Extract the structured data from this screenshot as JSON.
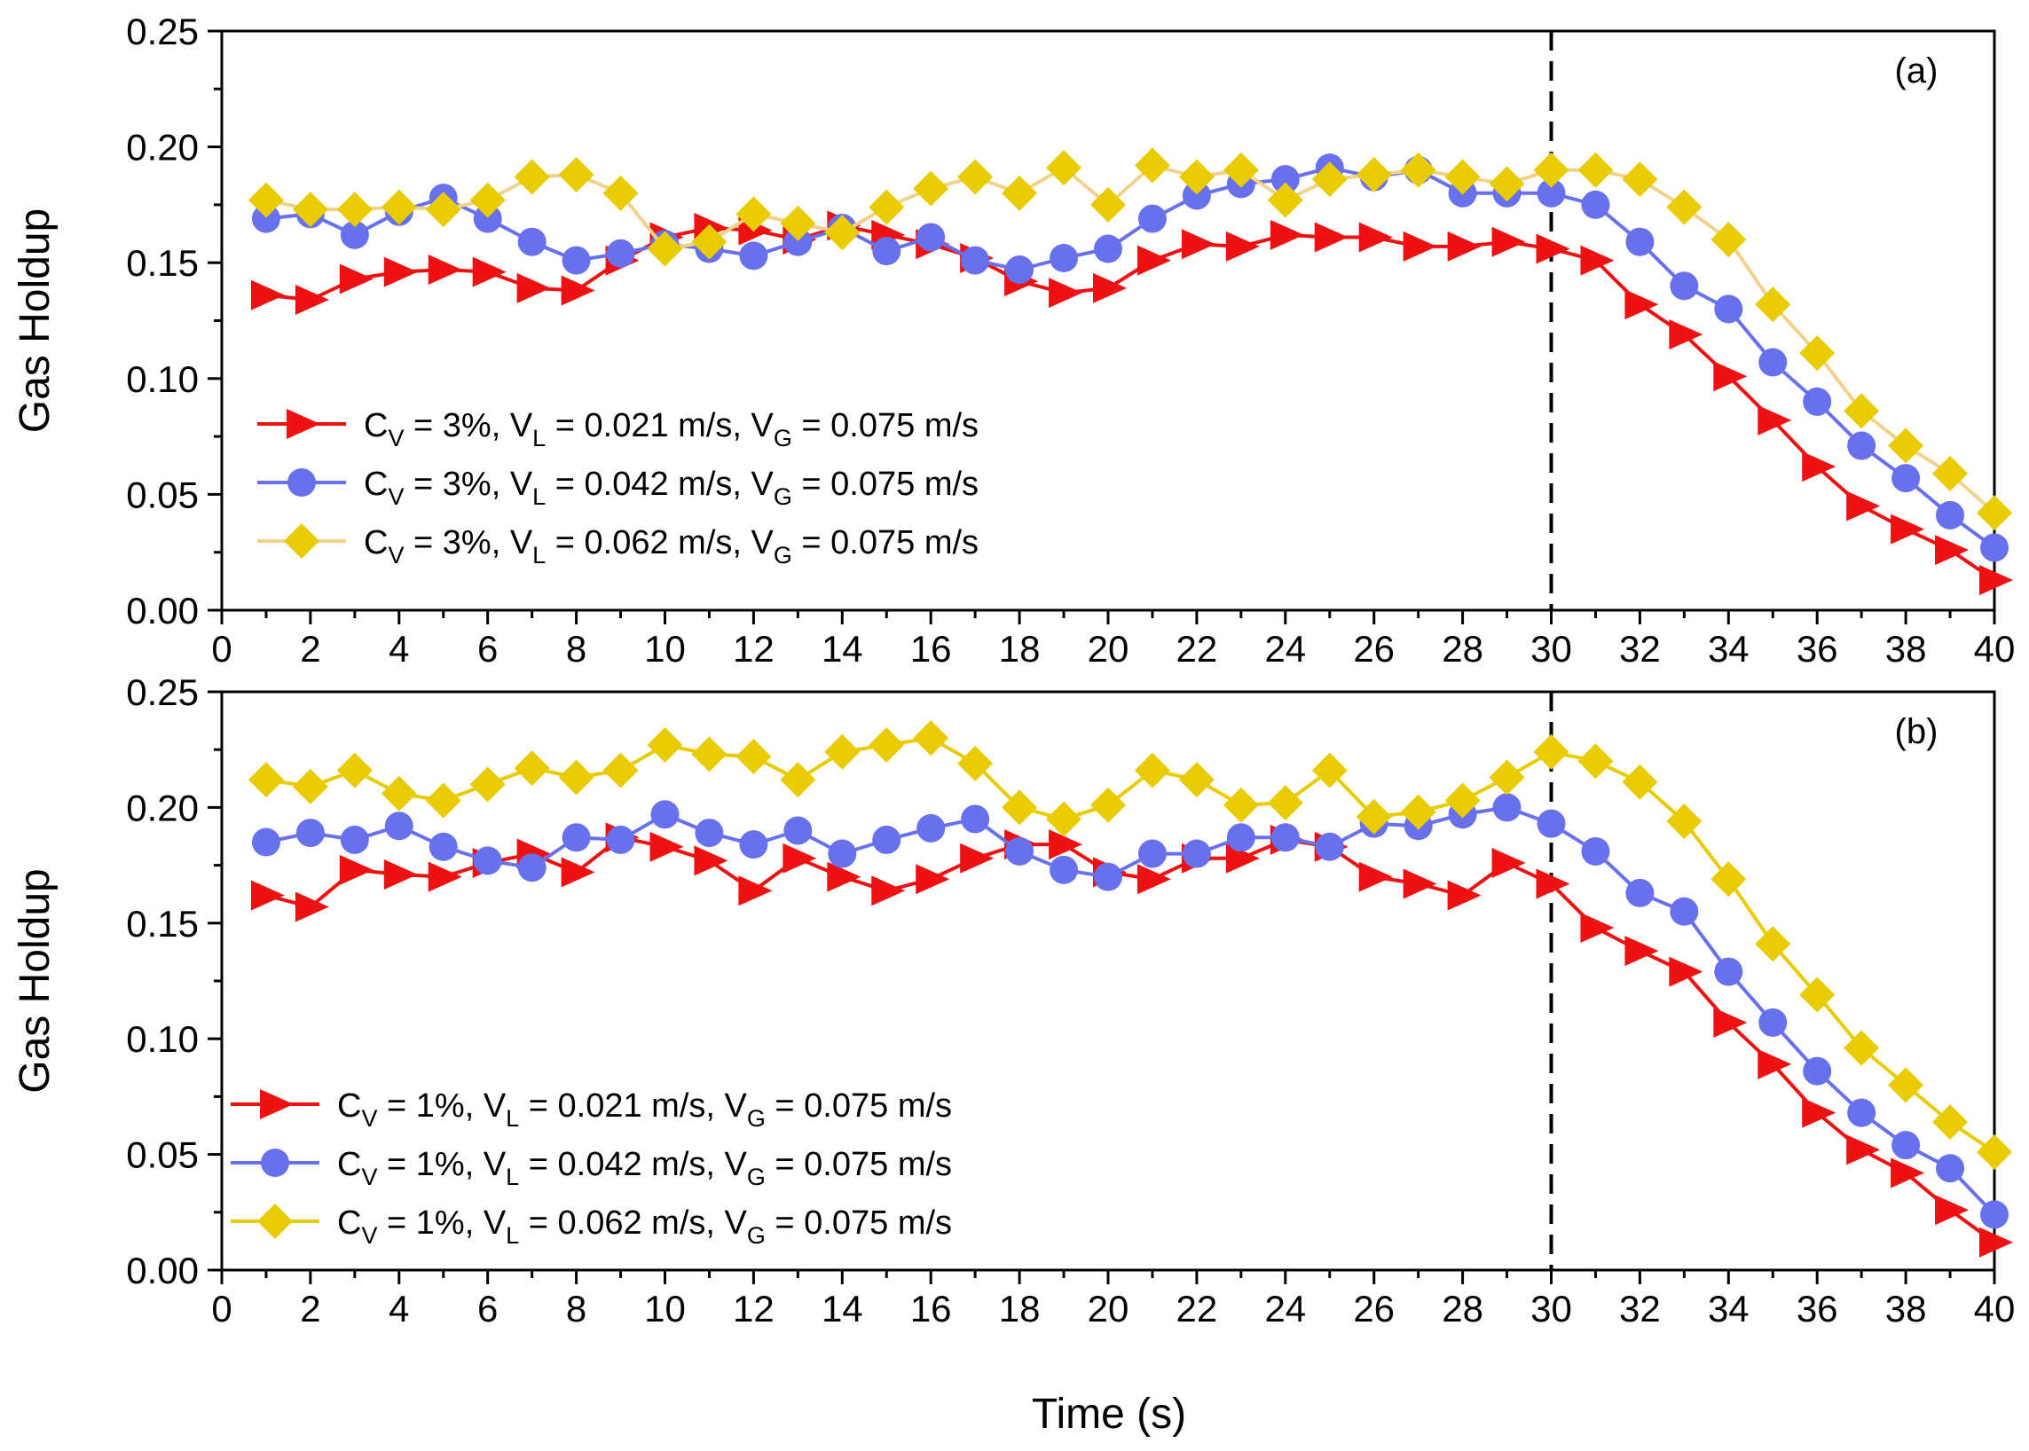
{
  "chart_data": [
    {
      "type": "line",
      "panel_label": "(a)",
      "xlabel": "Time (s)",
      "ylabel": "Gas Holdup",
      "xlim": [
        0,
        40
      ],
      "ylim": [
        0.0,
        0.25
      ],
      "xticks": [
        "0",
        "2",
        "4",
        "6",
        "8",
        "10",
        "12",
        "14",
        "16",
        "18",
        "20",
        "22",
        "24",
        "26",
        "28",
        "30",
        "32",
        "34",
        "36",
        "38",
        "40"
      ],
      "yticks": [
        "0.00",
        "0.05",
        "0.10",
        "0.15",
        "0.20",
        "0.25"
      ],
      "vline_x": 30,
      "legend_position": "lower-left",
      "x": [
        1,
        2,
        3,
        4,
        5,
        6,
        7,
        8,
        9,
        10,
        11,
        12,
        13,
        14,
        15,
        16,
        17,
        18,
        19,
        20,
        21,
        22,
        23,
        24,
        25,
        26,
        27,
        28,
        29,
        30,
        31,
        32,
        33,
        34,
        35,
        36,
        37,
        38,
        39,
        40
      ],
      "series": [
        {
          "name": "Cv = 3%, VL = 0.021 m/s, VG = 0.075 m/s",
          "legend": {
            "a": "C",
            "a_sub": "V",
            "b": " = 3%, V",
            "b_sub": "L",
            "c": " = 0.021 m/s, V",
            "c_sub": "G",
            "d": " = 0.075 m/s"
          },
          "color": "#ee1111",
          "marker": "triangle-right",
          "values": [
            0.136,
            0.134,
            0.143,
            0.146,
            0.147,
            0.146,
            0.139,
            0.138,
            0.151,
            0.161,
            0.165,
            0.164,
            0.16,
            0.166,
            0.162,
            0.158,
            0.152,
            0.142,
            0.137,
            0.139,
            0.151,
            0.158,
            0.157,
            0.162,
            0.161,
            0.161,
            0.157,
            0.157,
            0.159,
            0.156,
            0.151,
            0.132,
            0.119,
            0.101,
            0.082,
            0.062,
            0.045,
            0.035,
            0.026,
            0.013
          ]
        },
        {
          "name": "Cv = 3%, VL = 0.042 m/s, VG = 0.075 m/s",
          "legend": {
            "a": "C",
            "a_sub": "V",
            "b": " = 3%, V",
            "b_sub": "L",
            "c": " = 0.042 m/s, V",
            "c_sub": "G",
            "d": " = 0.075 m/s"
          },
          "color": "#6870ee",
          "marker": "circle",
          "values": [
            0.169,
            0.171,
            0.162,
            0.172,
            0.178,
            0.169,
            0.159,
            0.151,
            0.154,
            0.158,
            0.156,
            0.153,
            0.159,
            0.165,
            0.155,
            0.161,
            0.151,
            0.147,
            0.152,
            0.156,
            0.169,
            0.179,
            0.184,
            0.186,
            0.191,
            0.187,
            0.19,
            0.18,
            0.18,
            0.18,
            0.175,
            0.159,
            0.14,
            0.13,
            0.107,
            0.09,
            0.071,
            0.057,
            0.041,
            0.027
          ]
        },
        {
          "name": "Cv = 3%, VL = 0.062 m/s, VG = 0.075 m/s",
          "legend": {
            "a": "C",
            "a_sub": "V",
            "b": " = 3%, V",
            "b_sub": "L",
            "c": " = 0.062 m/s, V",
            "c_sub": "G",
            "d": " = 0.075 m/s"
          },
          "color": "#e8cc00",
          "line_color": "#f2d28a",
          "marker": "diamond",
          "values": [
            0.177,
            0.173,
            0.173,
            0.174,
            0.173,
            0.177,
            0.187,
            0.188,
            0.18,
            0.156,
            0.159,
            0.171,
            0.167,
            0.163,
            0.174,
            0.182,
            0.187,
            0.18,
            0.191,
            0.175,
            0.192,
            0.187,
            0.19,
            0.177,
            0.186,
            0.188,
            0.19,
            0.187,
            0.184,
            0.19,
            0.19,
            0.186,
            0.174,
            0.16,
            0.132,
            0.111,
            0.086,
            0.071,
            0.059,
            0.042
          ]
        }
      ]
    },
    {
      "type": "line",
      "panel_label": "(b)",
      "xlabel": "Time (s)",
      "ylabel": "Gas Holdup",
      "xlim": [
        0,
        40
      ],
      "ylim": [
        0.0,
        0.25
      ],
      "xticks": [
        "0",
        "2",
        "4",
        "6",
        "8",
        "10",
        "12",
        "14",
        "16",
        "18",
        "20",
        "22",
        "24",
        "26",
        "28",
        "30",
        "32",
        "34",
        "36",
        "38",
        "40"
      ],
      "yticks": [
        "0.00",
        "0.05",
        "0.10",
        "0.15",
        "0.20",
        "0.25"
      ],
      "vline_x": 30,
      "legend_position": "lower-left",
      "x": [
        1,
        2,
        3,
        4,
        5,
        6,
        7,
        8,
        9,
        10,
        11,
        12,
        13,
        14,
        15,
        16,
        17,
        18,
        19,
        20,
        21,
        22,
        23,
        24,
        25,
        26,
        27,
        28,
        29,
        30,
        31,
        32,
        33,
        34,
        35,
        36,
        37,
        38,
        39,
        40
      ],
      "series": [
        {
          "name": "Cv = 1%, VL = 0.021 m/s, VG = 0.075 m/s",
          "legend": {
            "a": "C",
            "a_sub": "V",
            "b": " = 1%, V",
            "b_sub": "L",
            "c": " = 0.021 m/s, V",
            "c_sub": "G",
            "d": " = 0.075 m/s"
          },
          "color": "#ee1111",
          "marker": "triangle-right",
          "values": [
            0.162,
            0.157,
            0.173,
            0.171,
            0.17,
            0.176,
            0.18,
            0.172,
            0.187,
            0.183,
            0.177,
            0.164,
            0.178,
            0.17,
            0.164,
            0.169,
            0.178,
            0.184,
            0.184,
            0.172,
            0.169,
            0.178,
            0.178,
            0.186,
            0.183,
            0.17,
            0.167,
            0.162,
            0.176,
            0.167,
            0.148,
            0.138,
            0.129,
            0.107,
            0.089,
            0.068,
            0.052,
            0.042,
            0.026,
            0.012
          ]
        },
        {
          "name": "Cv = 1%, VL = 0.042 m/s, VG = 0.075 m/s",
          "legend": {
            "a": "C",
            "a_sub": "V",
            "b": " = 1%, V",
            "b_sub": "L",
            "c": " = 0.042 m/s, V",
            "c_sub": "G",
            "d": " = 0.075 m/s"
          },
          "color": "#6870ee",
          "marker": "circle",
          "values": [
            0.185,
            0.189,
            0.186,
            0.192,
            0.183,
            0.177,
            0.174,
            0.187,
            0.186,
            0.197,
            0.189,
            0.184,
            0.19,
            0.18,
            0.186,
            0.191,
            0.195,
            0.181,
            0.173,
            0.17,
            0.18,
            0.18,
            0.187,
            0.187,
            0.183,
            0.193,
            0.192,
            0.197,
            0.2,
            0.193,
            0.181,
            0.163,
            0.155,
            0.129,
            0.107,
            0.086,
            0.068,
            0.054,
            0.044,
            0.024
          ]
        },
        {
          "name": "Cv = 1%, VL = 0.062 m/s, VG = 0.075 m/s",
          "legend": {
            "a": "C",
            "a_sub": "V",
            "b": " = 1%, V",
            "b_sub": "L",
            "c": " = 0.062 m/s, V",
            "c_sub": "G",
            "d": " = 0.075 m/s"
          },
          "color": "#e8cc00",
          "marker": "diamond",
          "values": [
            0.212,
            0.209,
            0.216,
            0.206,
            0.203,
            0.21,
            0.217,
            0.213,
            0.216,
            0.227,
            0.223,
            0.222,
            0.212,
            0.224,
            0.227,
            0.23,
            0.219,
            0.2,
            0.195,
            0.201,
            0.216,
            0.212,
            0.201,
            0.202,
            0.216,
            0.196,
            0.198,
            0.203,
            0.213,
            0.224,
            0.22,
            0.211,
            0.194,
            0.169,
            0.141,
            0.119,
            0.096,
            0.08,
            0.064,
            0.051
          ]
        }
      ]
    }
  ]
}
